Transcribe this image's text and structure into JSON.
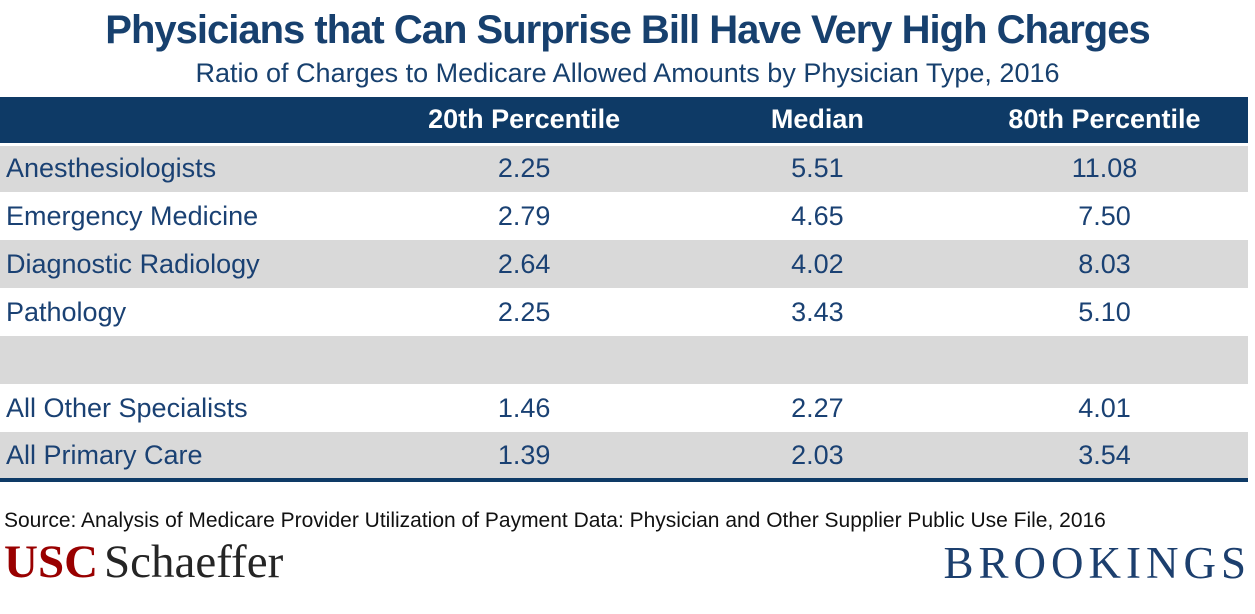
{
  "title": "Physicians that Can Surprise Bill Have Very High Charges",
  "subtitle": "Ratio of Charges to Medicare Allowed Amounts by Physician Type, 2016",
  "chart_data": {
    "type": "table",
    "title": "Physicians that Can Surprise Bill Have Very High Charges",
    "subtitle": "Ratio of Charges to Medicare Allowed Amounts by Physician Type, 2016",
    "columns": [
      "",
      "20th Percentile",
      "Median",
      "80th Percentile"
    ],
    "rows": [
      {
        "label": "Anesthesiologists",
        "values": [
          "2.25",
          "5.51",
          "11.08"
        ]
      },
      {
        "label": "Emergency Medicine",
        "values": [
          "2.79",
          "4.65",
          "7.50"
        ]
      },
      {
        "label": "Diagnostic Radiology",
        "values": [
          "2.64",
          "4.02",
          "8.03"
        ]
      },
      {
        "label": "Pathology",
        "values": [
          "2.25",
          "3.43",
          "5.10"
        ]
      },
      {
        "label": "",
        "values": [
          "",
          "",
          ""
        ]
      },
      {
        "label": "All Other Specialists",
        "values": [
          "1.46",
          "2.27",
          "4.01"
        ]
      },
      {
        "label": "All Primary Care",
        "values": [
          "1.39",
          "2.03",
          "3.54"
        ]
      }
    ]
  },
  "footer": {
    "source": "Source: Analysis of Medicare Provider Utilization of Payment Data: Physician and Other Supplier Public Use File, 2016",
    "usc_logo_part1": "USC",
    "usc_logo_part2": "Schaeffer",
    "brookings_logo": "BROOKINGS"
  },
  "colors": {
    "header_navy": "#0e3a66",
    "text_navy": "#1a4173",
    "title_navy": "#17406e",
    "row_gray": "#d9d9d9",
    "usc_crimson": "#990000",
    "schaeffer_black": "#252525",
    "brookings_navy": "#1c3f6e"
  }
}
